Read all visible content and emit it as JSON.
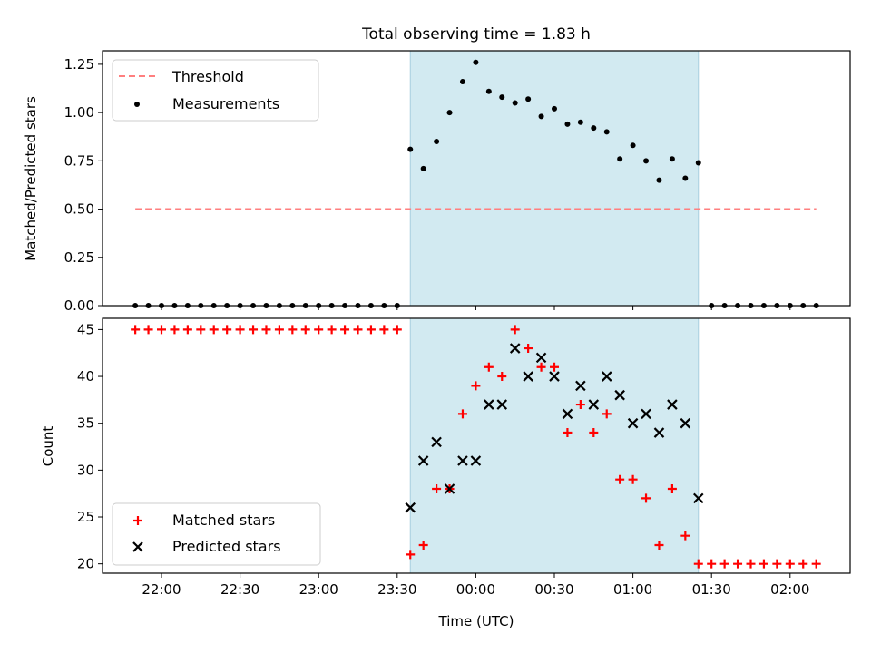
{
  "chart_data": [
    {
      "type": "scatter",
      "title": "Total observing time = 1.83 h",
      "xlabel": "",
      "ylabel": "Matched/Predicted stars",
      "ylim": [
        0,
        1.32
      ],
      "yticks": [
        "0.00",
        "0.25",
        "0.50",
        "0.75",
        "1.00",
        "1.25"
      ],
      "legend_position": "top-left",
      "highlight_region": {
        "start": "23:35",
        "end": "01:25",
        "color": "#add8e6"
      },
      "series": [
        {
          "name": "Threshold",
          "kind": "line",
          "style": "dashed",
          "color": "#ff7f7f",
          "x": [
            "21:50",
            "02:10"
          ],
          "y": [
            0.5,
            0.5
          ]
        },
        {
          "name": "Measurements",
          "kind": "scatter",
          "marker": "dot",
          "color": "#000000",
          "x": [
            "21:50",
            "21:55",
            "22:00",
            "22:05",
            "22:10",
            "22:15",
            "22:20",
            "22:25",
            "22:30",
            "22:35",
            "22:40",
            "22:45",
            "22:50",
            "22:55",
            "23:00",
            "23:05",
            "23:10",
            "23:15",
            "23:20",
            "23:25",
            "23:30",
            "23:35",
            "23:40",
            "23:45",
            "23:50",
            "23:55",
            "00:00",
            "00:05",
            "00:10",
            "00:15",
            "00:20",
            "00:25",
            "00:30",
            "00:35",
            "00:40",
            "00:45",
            "00:50",
            "00:55",
            "01:00",
            "01:05",
            "01:10",
            "01:15",
            "01:20",
            "01:25",
            "01:30",
            "01:35",
            "01:40",
            "01:45",
            "01:50",
            "01:55",
            "02:00",
            "02:05",
            "02:10"
          ],
          "y": [
            0,
            0,
            0,
            0,
            0,
            0,
            0,
            0,
            0,
            0,
            0,
            0,
            0,
            0,
            0,
            0,
            0,
            0,
            0,
            0,
            0,
            0.81,
            0.71,
            0.85,
            1.0,
            1.16,
            1.26,
            1.11,
            1.08,
            1.05,
            1.07,
            0.98,
            1.02,
            0.94,
            0.95,
            0.92,
            0.9,
            0.76,
            0.83,
            0.75,
            0.65,
            0.76,
            0.66,
            0.74,
            0,
            0,
            0,
            0,
            0,
            0,
            0,
            0,
            0
          ]
        }
      ]
    },
    {
      "type": "scatter",
      "xlabel": "Time (UTC)",
      "ylabel": "Count",
      "ylim": [
        19,
        46.2
      ],
      "yticks": [
        "20",
        "25",
        "30",
        "35",
        "40",
        "45"
      ],
      "xticks": [
        "22:00",
        "22:30",
        "23:00",
        "23:30",
        "00:00",
        "00:30",
        "01:00",
        "01:30",
        "02:00"
      ],
      "legend_position": "bottom-left",
      "highlight_region": {
        "start": "23:35",
        "end": "01:25",
        "color": "#add8e6"
      },
      "series": [
        {
          "name": "Matched stars",
          "kind": "scatter",
          "marker": "plus",
          "color": "#ff0000",
          "x": [
            "21:50",
            "21:55",
            "22:00",
            "22:05",
            "22:10",
            "22:15",
            "22:20",
            "22:25",
            "22:30",
            "22:35",
            "22:40",
            "22:45",
            "22:50",
            "22:55",
            "23:00",
            "23:05",
            "23:10",
            "23:15",
            "23:20",
            "23:25",
            "23:30",
            "23:35",
            "23:40",
            "23:45",
            "23:50",
            "23:55",
            "00:00",
            "00:05",
            "00:10",
            "00:15",
            "00:20",
            "00:25",
            "00:30",
            "00:35",
            "00:40",
            "00:45",
            "00:50",
            "00:55",
            "01:00",
            "01:05",
            "01:10",
            "01:15",
            "01:20",
            "01:25",
            "01:30",
            "01:35",
            "01:40",
            "01:45",
            "01:50",
            "01:55",
            "02:00",
            "02:05",
            "02:10"
          ],
          "y": [
            45,
            45,
            45,
            45,
            45,
            45,
            45,
            45,
            45,
            45,
            45,
            45,
            45,
            45,
            45,
            45,
            45,
            45,
            45,
            45,
            45,
            21,
            22,
            28,
            28,
            36,
            39,
            41,
            40,
            45,
            43,
            41,
            41,
            34,
            37,
            34,
            36,
            29,
            29,
            27,
            22,
            28,
            23,
            20,
            20,
            20,
            20,
            20,
            20,
            20,
            20,
            20,
            20
          ]
        },
        {
          "name": "Predicted stars",
          "kind": "scatter",
          "marker": "x",
          "color": "#000000",
          "x": [
            "23:35",
            "23:40",
            "23:45",
            "23:50",
            "23:55",
            "00:00",
            "00:05",
            "00:10",
            "00:15",
            "00:20",
            "00:25",
            "00:30",
            "00:35",
            "00:40",
            "00:45",
            "00:50",
            "00:55",
            "01:00",
            "01:05",
            "01:10",
            "01:15",
            "01:20",
            "01:25"
          ],
          "y": [
            26,
            31,
            33,
            28,
            31,
            31,
            37,
            37,
            43,
            40,
            42,
            40,
            36,
            39,
            37,
            40,
            38,
            35,
            36,
            34,
            37,
            35,
            27
          ]
        }
      ]
    }
  ]
}
